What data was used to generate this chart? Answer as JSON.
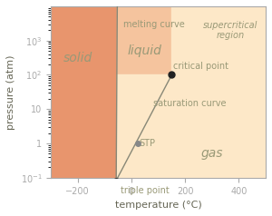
{
  "title": "",
  "xlabel": "temperature (°C)",
  "ylabel": "pressure (atm)",
  "xlim": [
    -300,
    500
  ],
  "ylim_log": [
    -1,
    4
  ],
  "background_color": "#ffffff",
  "solid_color": "#e8956d",
  "liquid_color": "#f5c49e",
  "gas_color": "#fde8c8",
  "supercritical_color": "#fde8c8",
  "triple_point": [
    -56.6,
    0.083
  ],
  "critical_point": [
    150,
    100
  ],
  "STP_point": [
    25,
    1.0
  ],
  "label_solid": "solid",
  "label_liquid": "liquid",
  "label_gas": "gas",
  "label_supercritical": "supercritical\nregion",
  "label_melting": "melting curve",
  "label_saturation": "saturation curve",
  "label_critical": "critical point",
  "label_triple": "triple point",
  "label_STP": "STP",
  "text_color": "#999977",
  "point_color_triple": "#333333",
  "point_color_critical": "#222222",
  "point_color_STP": "#888888",
  "tick_color": "#aaaaaa",
  "axis_color": "#aaaaaa",
  "label_fontsize": 8,
  "region_fontsize": 10,
  "curve_label_fontsize": 7
}
